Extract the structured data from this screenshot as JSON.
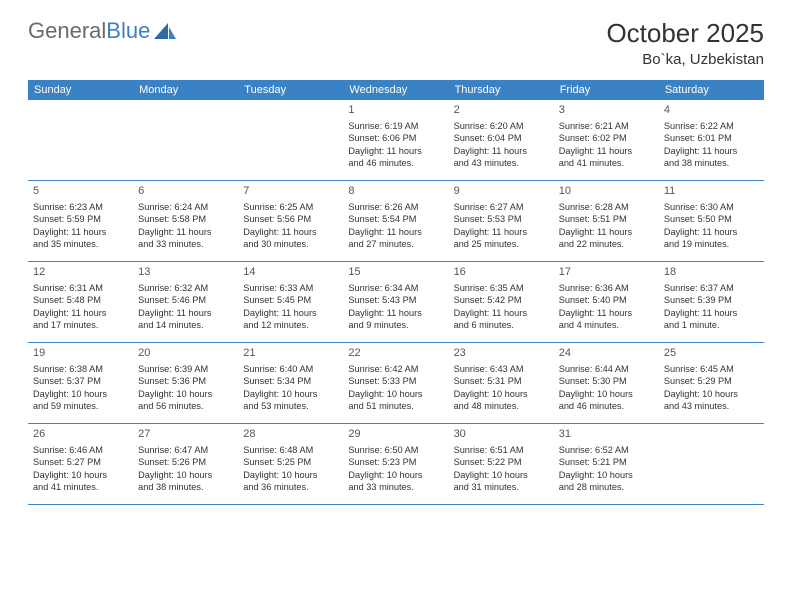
{
  "logo": {
    "text1": "General",
    "text2": "Blue"
  },
  "title": "October 2025",
  "location": "Bo`ka, Uzbekistan",
  "colors": {
    "header_bg": "#3b82c4",
    "header_text": "#ffffff",
    "rule": "#3b82c4",
    "text": "#333333",
    "logo_gray": "#6a6a6a",
    "logo_blue": "#3b7fc4",
    "bg": "#ffffff"
  },
  "dow": [
    "Sunday",
    "Monday",
    "Tuesday",
    "Wednesday",
    "Thursday",
    "Friday",
    "Saturday"
  ],
  "weeks": [
    [
      null,
      null,
      null,
      {
        "n": "1",
        "sunrise": "6:19 AM",
        "sunset": "6:06 PM",
        "dl1": "11 hours",
        "dl2": "and 46 minutes."
      },
      {
        "n": "2",
        "sunrise": "6:20 AM",
        "sunset": "6:04 PM",
        "dl1": "11 hours",
        "dl2": "and 43 minutes."
      },
      {
        "n": "3",
        "sunrise": "6:21 AM",
        "sunset": "6:02 PM",
        "dl1": "11 hours",
        "dl2": "and 41 minutes."
      },
      {
        "n": "4",
        "sunrise": "6:22 AM",
        "sunset": "6:01 PM",
        "dl1": "11 hours",
        "dl2": "and 38 minutes."
      }
    ],
    [
      {
        "n": "5",
        "sunrise": "6:23 AM",
        "sunset": "5:59 PM",
        "dl1": "11 hours",
        "dl2": "and 35 minutes."
      },
      {
        "n": "6",
        "sunrise": "6:24 AM",
        "sunset": "5:58 PM",
        "dl1": "11 hours",
        "dl2": "and 33 minutes."
      },
      {
        "n": "7",
        "sunrise": "6:25 AM",
        "sunset": "5:56 PM",
        "dl1": "11 hours",
        "dl2": "and 30 minutes."
      },
      {
        "n": "8",
        "sunrise": "6:26 AM",
        "sunset": "5:54 PM",
        "dl1": "11 hours",
        "dl2": "and 27 minutes."
      },
      {
        "n": "9",
        "sunrise": "6:27 AM",
        "sunset": "5:53 PM",
        "dl1": "11 hours",
        "dl2": "and 25 minutes."
      },
      {
        "n": "10",
        "sunrise": "6:28 AM",
        "sunset": "5:51 PM",
        "dl1": "11 hours",
        "dl2": "and 22 minutes."
      },
      {
        "n": "11",
        "sunrise": "6:30 AM",
        "sunset": "5:50 PM",
        "dl1": "11 hours",
        "dl2": "and 19 minutes."
      }
    ],
    [
      {
        "n": "12",
        "sunrise": "6:31 AM",
        "sunset": "5:48 PM",
        "dl1": "11 hours",
        "dl2": "and 17 minutes."
      },
      {
        "n": "13",
        "sunrise": "6:32 AM",
        "sunset": "5:46 PM",
        "dl1": "11 hours",
        "dl2": "and 14 minutes."
      },
      {
        "n": "14",
        "sunrise": "6:33 AM",
        "sunset": "5:45 PM",
        "dl1": "11 hours",
        "dl2": "and 12 minutes."
      },
      {
        "n": "15",
        "sunrise": "6:34 AM",
        "sunset": "5:43 PM",
        "dl1": "11 hours",
        "dl2": "and 9 minutes."
      },
      {
        "n": "16",
        "sunrise": "6:35 AM",
        "sunset": "5:42 PM",
        "dl1": "11 hours",
        "dl2": "and 6 minutes."
      },
      {
        "n": "17",
        "sunrise": "6:36 AM",
        "sunset": "5:40 PM",
        "dl1": "11 hours",
        "dl2": "and 4 minutes."
      },
      {
        "n": "18",
        "sunrise": "6:37 AM",
        "sunset": "5:39 PM",
        "dl1": "11 hours",
        "dl2": "and 1 minute."
      }
    ],
    [
      {
        "n": "19",
        "sunrise": "6:38 AM",
        "sunset": "5:37 PM",
        "dl1": "10 hours",
        "dl2": "and 59 minutes."
      },
      {
        "n": "20",
        "sunrise": "6:39 AM",
        "sunset": "5:36 PM",
        "dl1": "10 hours",
        "dl2": "and 56 minutes."
      },
      {
        "n": "21",
        "sunrise": "6:40 AM",
        "sunset": "5:34 PM",
        "dl1": "10 hours",
        "dl2": "and 53 minutes."
      },
      {
        "n": "22",
        "sunrise": "6:42 AM",
        "sunset": "5:33 PM",
        "dl1": "10 hours",
        "dl2": "and 51 minutes."
      },
      {
        "n": "23",
        "sunrise": "6:43 AM",
        "sunset": "5:31 PM",
        "dl1": "10 hours",
        "dl2": "and 48 minutes."
      },
      {
        "n": "24",
        "sunrise": "6:44 AM",
        "sunset": "5:30 PM",
        "dl1": "10 hours",
        "dl2": "and 46 minutes."
      },
      {
        "n": "25",
        "sunrise": "6:45 AM",
        "sunset": "5:29 PM",
        "dl1": "10 hours",
        "dl2": "and 43 minutes."
      }
    ],
    [
      {
        "n": "26",
        "sunrise": "6:46 AM",
        "sunset": "5:27 PM",
        "dl1": "10 hours",
        "dl2": "and 41 minutes."
      },
      {
        "n": "27",
        "sunrise": "6:47 AM",
        "sunset": "5:26 PM",
        "dl1": "10 hours",
        "dl2": "and 38 minutes."
      },
      {
        "n": "28",
        "sunrise": "6:48 AM",
        "sunset": "5:25 PM",
        "dl1": "10 hours",
        "dl2": "and 36 minutes."
      },
      {
        "n": "29",
        "sunrise": "6:50 AM",
        "sunset": "5:23 PM",
        "dl1": "10 hours",
        "dl2": "and 33 minutes."
      },
      {
        "n": "30",
        "sunrise": "6:51 AM",
        "sunset": "5:22 PM",
        "dl1": "10 hours",
        "dl2": "and 31 minutes."
      },
      {
        "n": "31",
        "sunrise": "6:52 AM",
        "sunset": "5:21 PM",
        "dl1": "10 hours",
        "dl2": "and 28 minutes."
      },
      null
    ]
  ],
  "labels": {
    "sunrise": "Sunrise:",
    "sunset": "Sunset:",
    "daylight": "Daylight:"
  }
}
